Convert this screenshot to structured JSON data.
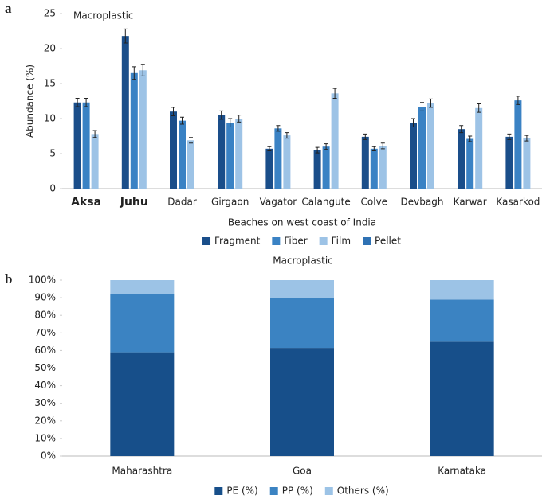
{
  "chart_data": [
    {
      "type": "bar",
      "panel": "a",
      "title": "Macroplastic",
      "x_label": "Beaches on west coast of India",
      "y_label": "Abundance (%)",
      "categories": [
        "Aksa",
        "Juhu",
        "Dadar",
        "Girgaon",
        "Vagator",
        "Calangute",
        "Colve",
        "Devbagh",
        "Karwar",
        "Kasarkod"
      ],
      "series": [
        {
          "name": "Fragment",
          "color": "#1a4e8a",
          "values": [
            12.3,
            21.8,
            11.0,
            10.5,
            5.7,
            5.5,
            7.4,
            9.4,
            8.5,
            7.4
          ],
          "errors": [
            0.6,
            1.0,
            0.6,
            0.6,
            0.3,
            0.4,
            0.4,
            0.6,
            0.5,
            0.4
          ]
        },
        {
          "name": "Fiber",
          "color": "#3a82c4",
          "values": [
            12.3,
            16.5,
            9.7,
            9.4,
            8.6,
            6.0,
            5.7,
            11.7,
            7.1,
            12.6
          ],
          "errors": [
            0.6,
            0.9,
            0.5,
            0.6,
            0.4,
            0.4,
            0.3,
            0.6,
            0.4,
            0.6
          ]
        },
        {
          "name": "Film",
          "color": "#9dc3e6",
          "values": [
            7.8,
            16.9,
            6.9,
            10.0,
            7.6,
            13.6,
            6.1,
            12.2,
            11.5,
            7.2
          ],
          "errors": [
            0.5,
            0.8,
            0.4,
            0.5,
            0.4,
            0.7,
            0.4,
            0.6,
            0.6,
            0.4
          ]
        },
        {
          "name": "Pellet",
          "color": "#2f72b4",
          "values": [
            null,
            null,
            null,
            null,
            null,
            null,
            null,
            null,
            null,
            null
          ]
        }
      ],
      "ylim": [
        0,
        25
      ],
      "yticks": [
        0,
        5,
        10,
        15,
        20,
        25
      ],
      "grid": false,
      "legend": "bottom"
    },
    {
      "type": "stacked-bar",
      "panel": "b",
      "title": "Macroplastic",
      "categories": [
        "Maharashtra",
        "Goa",
        "Karnataka"
      ],
      "series": [
        {
          "name": "PE (%)",
          "color": "#174f8a",
          "values": [
            59,
            61.5,
            65
          ]
        },
        {
          "name": "PP (%)",
          "color": "#3b83c2",
          "values": [
            33,
            28.5,
            24
          ]
        },
        {
          "name": "Others (%)",
          "color": "#9cc3e6",
          "values": [
            8,
            10,
            11
          ]
        }
      ],
      "ylim": [
        0,
        100
      ],
      "yticks": [
        {
          "value": 0,
          "label": "0%"
        },
        {
          "value": 10,
          "label": "10%"
        },
        {
          "value": 20,
          "label": "20%"
        },
        {
          "value": 30,
          "label": "30%"
        },
        {
          "value": 40,
          "label": "40%"
        },
        {
          "value": 50,
          "label": "50%"
        },
        {
          "value": 60,
          "label": "60%"
        },
        {
          "value": 70,
          "label": "70%"
        },
        {
          "value": 80,
          "label": "80%"
        },
        {
          "value": 90,
          "label": "90%"
        },
        {
          "value": 100,
          "label": "100%"
        }
      ],
      "grid": false,
      "legend": "bottom"
    }
  ]
}
